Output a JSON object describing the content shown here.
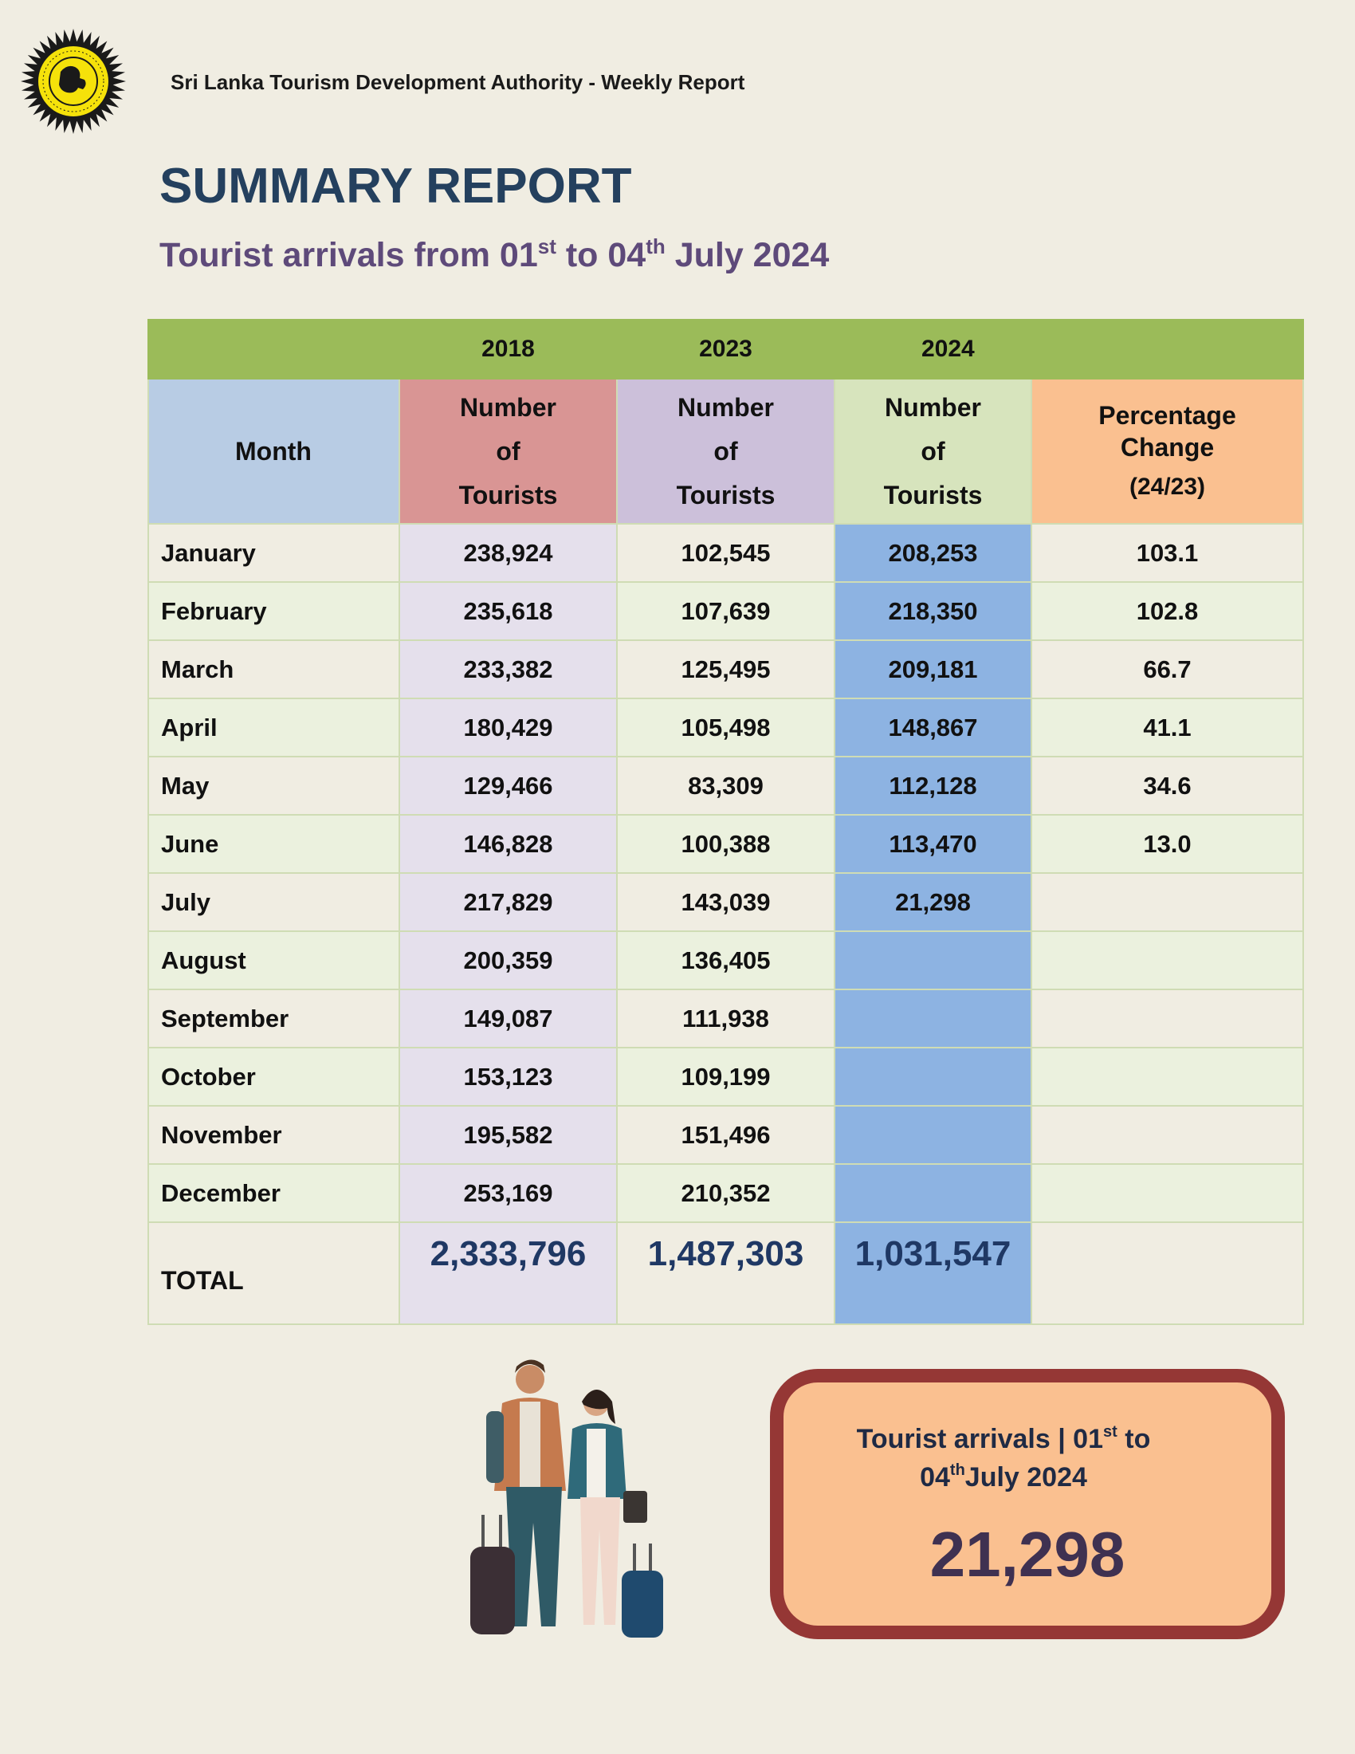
{
  "header": {
    "org_report": "Sri Lanka Tourism Development Authority - Weekly Report"
  },
  "title": "SUMMARY REPORT",
  "subtitle": {
    "part1": "Tourist arrivals from 01",
    "sup1": "st",
    "part2": " to 04",
    "sup2": "th",
    "part3": " July 2024"
  },
  "table": {
    "years": {
      "y2018": "2018",
      "y2023": "2023",
      "y2024": "2024"
    },
    "headers": {
      "month": "Month",
      "number_line1": "Number",
      "number_line2": "of",
      "number_line3": "Tourists",
      "pct_line1": "Percentage",
      "pct_line2": "Change",
      "pct_line3": "(24/23)"
    },
    "rows": [
      {
        "month": "January",
        "y2018": "238,924",
        "y2023": "102,545",
        "y2024": "208,253",
        "pct": "103.1"
      },
      {
        "month": "February",
        "y2018": "235,618",
        "y2023": "107,639",
        "y2024": "218,350",
        "pct": "102.8"
      },
      {
        "month": "March",
        "y2018": "233,382",
        "y2023": "125,495",
        "y2024": "209,181",
        "pct": "66.7"
      },
      {
        "month": "April",
        "y2018": "180,429",
        "y2023": "105,498",
        "y2024": "148,867",
        "pct": "41.1"
      },
      {
        "month": "May",
        "y2018": "129,466",
        "y2023": "83,309",
        "y2024": "112,128",
        "pct": "34.6"
      },
      {
        "month": "June",
        "y2018": "146,828",
        "y2023": "100,388",
        "y2024": "113,470",
        "pct": "13.0"
      },
      {
        "month": "July",
        "y2018": "217,829",
        "y2023": "143,039",
        "y2024": "21,298",
        "pct": ""
      },
      {
        "month": "August",
        "y2018": "200,359",
        "y2023": "136,405",
        "y2024": "",
        "pct": ""
      },
      {
        "month": "September",
        "y2018": "149,087",
        "y2023": "111,938",
        "y2024": "",
        "pct": ""
      },
      {
        "month": "October",
        "y2018": "153,123",
        "y2023": "109,199",
        "y2024": "",
        "pct": ""
      },
      {
        "month": "November",
        "y2018": "195,582",
        "y2023": "151,496",
        "y2024": "",
        "pct": ""
      },
      {
        "month": "December",
        "y2018": "253,169",
        "y2023": "210,352",
        "y2024": "",
        "pct": ""
      }
    ],
    "total": {
      "label": "TOTAL",
      "y2018": "2,333,796",
      "y2023": "1,487,303",
      "y2024": "1,031,547"
    }
  },
  "callout": {
    "line1_text": "Tourist arrivals | 01",
    "line1_sup": "st",
    "line1_end": " to",
    "line2_start": "04",
    "line2_sup": "th",
    "line2_text": "July 2024",
    "value": "21,298"
  },
  "colors": {
    "background": "#f0ede2",
    "title": "#24405e",
    "subtitle": "#5e4a7a",
    "year_bar": "#9bbb59",
    "col_2018": "#e5e0ec",
    "col_2024": "#8db3e2",
    "callout_fill": "#fac090",
    "callout_border": "#953735"
  },
  "icons": {
    "logo": "sltda-emblem-icon",
    "illustration": "travelers-with-luggage-icon"
  }
}
